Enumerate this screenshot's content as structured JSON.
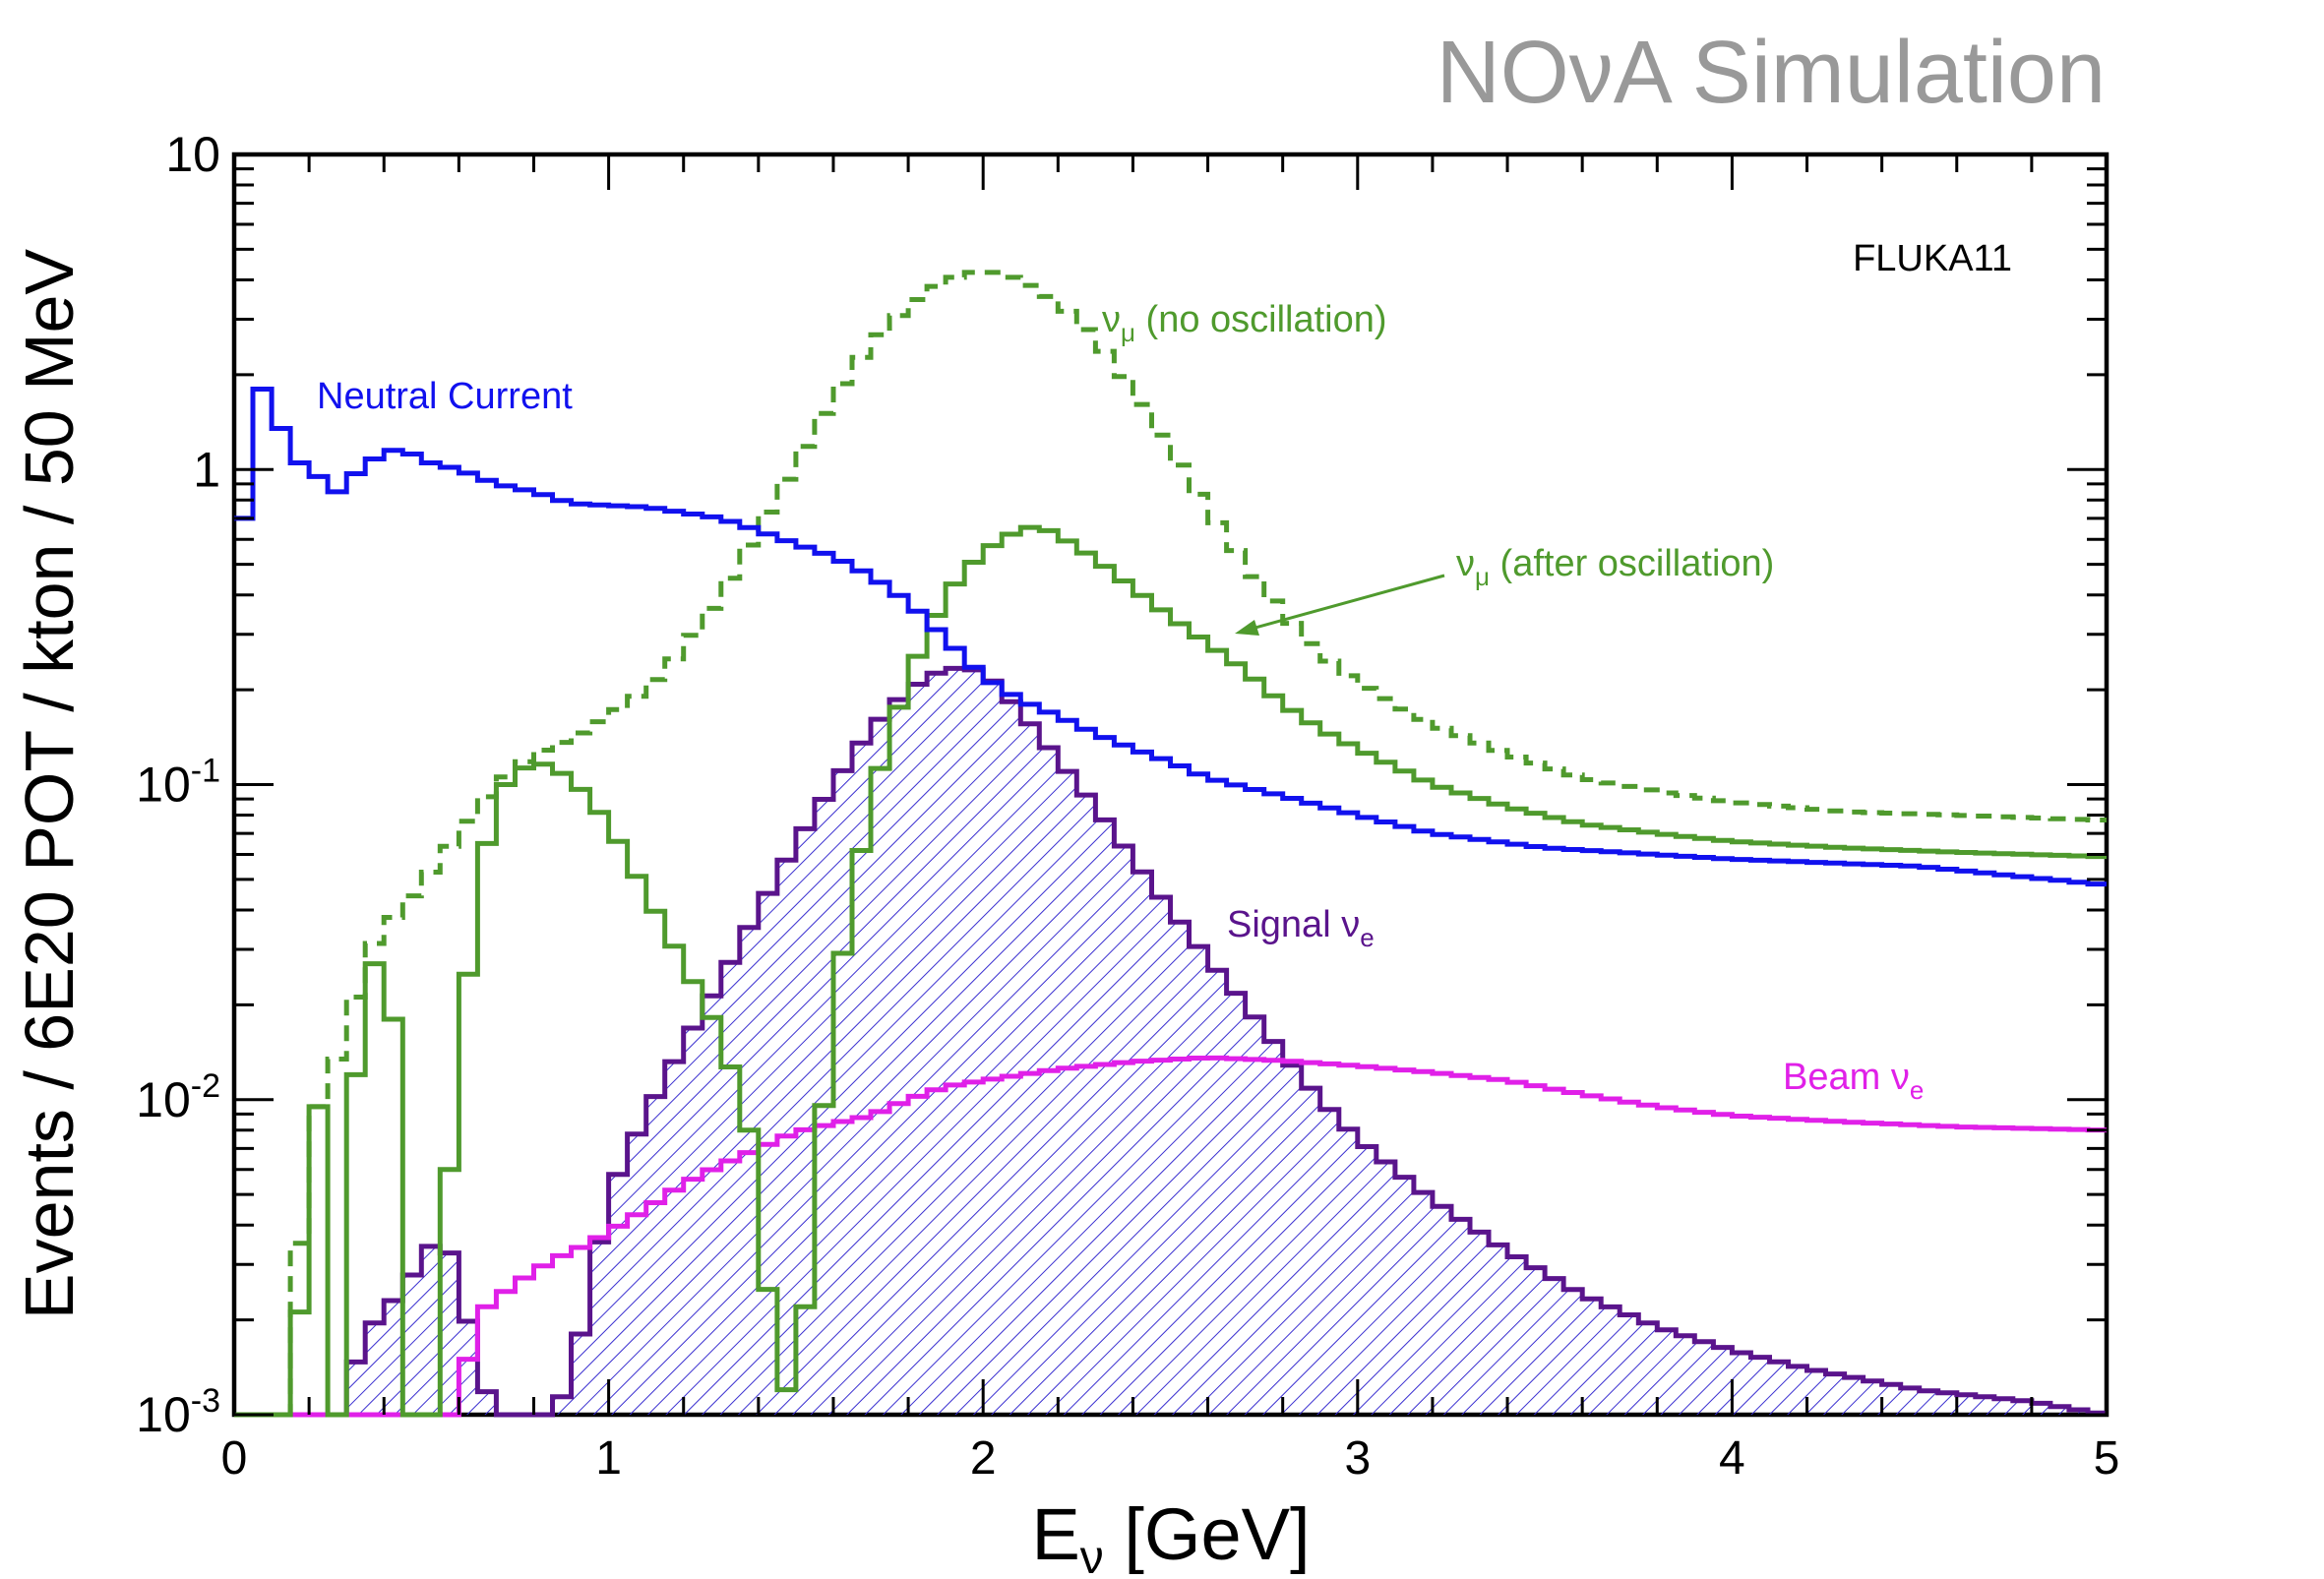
{
  "chart_data": {
    "type": "line",
    "banner": "NOνA Simulation",
    "tag": "FLUKA11",
    "xlabel": {
      "main": "E",
      "sub": "ν",
      "rest": " [GeV]"
    },
    "ylabel": "Events / 6E20 POT / kton / 50 MeV",
    "xlim": [
      0,
      5
    ],
    "ylim": [
      0.001,
      10
    ],
    "yscale": "log",
    "grid": false,
    "xticks": [
      0,
      1,
      2,
      3,
      4,
      5
    ],
    "yticks": [
      {
        "value": 10,
        "base": "10",
        "exp": ""
      },
      {
        "value": 1,
        "base": "1",
        "exp": ""
      },
      {
        "value": 0.1,
        "base": "10",
        "exp": "-1"
      },
      {
        "value": 0.01,
        "base": "10",
        "exp": "-2"
      },
      {
        "value": 0.001,
        "base": "10",
        "exp": "-3"
      }
    ],
    "colors": {
      "nc": "#1111ee",
      "numu": "#4f9a2d",
      "signal": "#5a148c",
      "beam": "#e020e8",
      "banner": "#999999"
    },
    "series": [
      {
        "key": "nc",
        "style": "solid",
        "bin_edges": [
          0,
          0.05
        ],
        "anchors": [
          [
            0.025,
            0.7
          ],
          [
            0.075,
            1.8
          ],
          [
            0.125,
            1.35
          ],
          [
            0.175,
            1.05
          ],
          [
            0.225,
            0.95
          ],
          [
            0.275,
            0.85
          ],
          [
            0.325,
            0.97
          ],
          [
            0.375,
            1.08
          ],
          [
            0.425,
            1.15
          ],
          [
            0.475,
            1.12
          ],
          [
            0.525,
            1.05
          ],
          [
            0.6,
            1.0
          ],
          [
            0.7,
            0.9
          ],
          [
            0.8,
            0.85
          ],
          [
            0.9,
            0.78
          ],
          [
            1.0,
            0.77
          ],
          [
            1.1,
            0.76
          ],
          [
            1.2,
            0.73
          ],
          [
            1.3,
            0.7
          ],
          [
            1.4,
            0.64
          ],
          [
            1.5,
            0.58
          ],
          [
            1.6,
            0.53
          ],
          [
            1.7,
            0.46
          ],
          [
            1.8,
            0.38
          ],
          [
            1.9,
            0.29
          ],
          [
            2.0,
            0.22
          ],
          [
            2.1,
            0.185
          ],
          [
            2.2,
            0.165
          ],
          [
            2.3,
            0.145
          ],
          [
            2.4,
            0.13
          ],
          [
            2.5,
            0.118
          ],
          [
            2.6,
            0.105
          ],
          [
            2.7,
            0.098
          ],
          [
            2.8,
            0.092
          ],
          [
            3.0,
            0.08
          ],
          [
            3.2,
            0.07
          ],
          [
            3.5,
            0.063
          ],
          [
            4.0,
            0.058
          ],
          [
            4.5,
            0.055
          ],
          [
            5.0,
            0.048
          ]
        ],
        "label": "Neutral Current"
      },
      {
        "key": "numu_noosc",
        "style": "dashed",
        "anchors": [
          [
            0.125,
            0.001
          ],
          [
            0.175,
            0.0035
          ],
          [
            0.225,
            0.0095
          ],
          [
            0.3,
            0.016
          ],
          [
            0.35,
            0.028
          ],
          [
            0.4,
            0.035
          ],
          [
            0.5,
            0.048
          ],
          [
            0.6,
            0.07
          ],
          [
            0.7,
            0.1
          ],
          [
            0.8,
            0.125
          ],
          [
            0.9,
            0.14
          ],
          [
            1.0,
            0.165
          ],
          [
            1.1,
            0.2
          ],
          [
            1.2,
            0.27
          ],
          [
            1.3,
            0.4
          ],
          [
            1.4,
            0.65
          ],
          [
            1.5,
            1.05
          ],
          [
            1.6,
            1.7
          ],
          [
            1.7,
            2.5
          ],
          [
            1.8,
            3.3
          ],
          [
            1.9,
            4.0
          ],
          [
            2.0,
            4.3
          ],
          [
            2.1,
            4.0
          ],
          [
            2.2,
            3.4
          ],
          [
            2.3,
            2.6
          ],
          [
            2.4,
            1.8
          ],
          [
            2.5,
            1.15
          ],
          [
            2.6,
            0.75
          ],
          [
            2.7,
            0.5
          ],
          [
            2.8,
            0.35
          ],
          [
            2.9,
            0.26
          ],
          [
            3.0,
            0.21
          ],
          [
            3.2,
            0.155
          ],
          [
            3.4,
            0.125
          ],
          [
            3.6,
            0.105
          ],
          [
            3.8,
            0.095
          ],
          [
            4.0,
            0.088
          ],
          [
            4.3,
            0.082
          ],
          [
            4.6,
            0.08
          ],
          [
            5.0,
            0.077
          ]
        ],
        "label": "ν",
        "label_sub": "μ",
        "label_rest": " (no oscillation)"
      },
      {
        "key": "numu_osc",
        "style": "solid",
        "bin_edges": [
          0,
          0.05
        ],
        "anchors": [
          [
            0.15,
            0.001
          ],
          [
            0.225,
            0.0095
          ],
          [
            0.275,
            0.001
          ],
          [
            0.3,
            0.001
          ],
          [
            0.325,
            0.012
          ],
          [
            0.375,
            0.027
          ],
          [
            0.425,
            0.018
          ],
          [
            0.475,
            0.001
          ],
          [
            0.5,
            0.001
          ],
          [
            0.525,
            0.001
          ],
          [
            0.575,
            0.006
          ],
          [
            0.625,
            0.025
          ],
          [
            0.675,
            0.065
          ],
          [
            0.725,
            0.1
          ],
          [
            0.8,
            0.12
          ],
          [
            0.9,
            0.105
          ],
          [
            1.0,
            0.075
          ],
          [
            1.1,
            0.045
          ],
          [
            1.2,
            0.027
          ],
          [
            1.3,
            0.016
          ],
          [
            1.375,
            0.008
          ],
          [
            1.425,
            0.0025
          ],
          [
            1.475,
            0.0012
          ],
          [
            1.525,
            0.0022
          ],
          [
            1.6,
            0.02
          ],
          [
            1.7,
            0.09
          ],
          [
            1.8,
            0.22
          ],
          [
            1.9,
            0.4
          ],
          [
            2.0,
            0.55
          ],
          [
            2.1,
            0.65
          ],
          [
            2.15,
            0.66
          ],
          [
            2.2,
            0.62
          ],
          [
            2.3,
            0.52
          ],
          [
            2.4,
            0.42
          ],
          [
            2.5,
            0.34
          ],
          [
            2.6,
            0.28
          ],
          [
            2.7,
            0.23
          ],
          [
            2.8,
            0.18
          ],
          [
            2.9,
            0.15
          ],
          [
            3.0,
            0.13
          ],
          [
            3.2,
            0.1
          ],
          [
            3.4,
            0.085
          ],
          [
            3.6,
            0.075
          ],
          [
            3.8,
            0.07
          ],
          [
            4.0,
            0.066
          ],
          [
            4.3,
            0.063
          ],
          [
            4.6,
            0.061
          ],
          [
            5.0,
            0.059
          ]
        ],
        "label": "ν",
        "label_sub": "μ",
        "label_rest": " (after oscillation)"
      },
      {
        "key": "signal",
        "style": "solid-hatched",
        "bin_edges": [
          0,
          0.05
        ],
        "anchors": [
          [
            0.275,
            0.001
          ],
          [
            0.3,
            0.0012
          ],
          [
            0.35,
            0.0018
          ],
          [
            0.45,
            0.0025
          ],
          [
            0.55,
            0.0038
          ],
          [
            0.6,
            0.0028
          ],
          [
            0.65,
            0.0014
          ],
          [
            0.7,
            0.001
          ],
          [
            0.85,
            0.001
          ],
          [
            0.9,
            0.0013
          ],
          [
            0.95,
            0.0025
          ],
          [
            1.0,
            0.005
          ],
          [
            1.1,
            0.009
          ],
          [
            1.2,
            0.015
          ],
          [
            1.3,
            0.024
          ],
          [
            1.4,
            0.04
          ],
          [
            1.5,
            0.065
          ],
          [
            1.6,
            0.1
          ],
          [
            1.7,
            0.15
          ],
          [
            1.8,
            0.2
          ],
          [
            1.9,
            0.235
          ],
          [
            2.0,
            0.23
          ],
          [
            2.1,
            0.17
          ],
          [
            2.2,
            0.12
          ],
          [
            2.3,
            0.085
          ],
          [
            2.4,
            0.058
          ],
          [
            2.5,
            0.04
          ],
          [
            2.6,
            0.028
          ],
          [
            2.7,
            0.02
          ],
          [
            2.8,
            0.014
          ],
          [
            2.9,
            0.01
          ],
          [
            3.0,
            0.0075
          ],
          [
            3.2,
            0.0048
          ],
          [
            3.4,
            0.0033
          ],
          [
            3.6,
            0.0024
          ],
          [
            3.8,
            0.0019
          ],
          [
            4.0,
            0.0016
          ],
          [
            4.2,
            0.0014
          ],
          [
            4.5,
            0.0012
          ],
          [
            4.8,
            0.0011
          ],
          [
            5.0,
            0.001
          ]
        ],
        "label": "Signal ν",
        "label_sub": "e"
      },
      {
        "key": "beam",
        "style": "solid",
        "bin_edges": [
          0,
          0.05
        ],
        "anchors": [
          [
            0.575,
            0.001
          ],
          [
            0.625,
            0.0015
          ],
          [
            0.675,
            0.0022
          ],
          [
            0.75,
            0.0026
          ],
          [
            0.85,
            0.0031
          ],
          [
            0.95,
            0.0035
          ],
          [
            1.0,
            0.0038
          ],
          [
            1.1,
            0.0045
          ],
          [
            1.2,
            0.0054
          ],
          [
            1.3,
            0.0062
          ],
          [
            1.4,
            0.007
          ],
          [
            1.5,
            0.0079
          ],
          [
            1.6,
            0.0084
          ],
          [
            1.7,
            0.0089
          ],
          [
            1.8,
            0.01
          ],
          [
            1.9,
            0.011
          ],
          [
            2.0,
            0.0115
          ],
          [
            2.2,
            0.0125
          ],
          [
            2.4,
            0.0132
          ],
          [
            2.6,
            0.0136
          ],
          [
            2.8,
            0.0133
          ],
          [
            3.0,
            0.0128
          ],
          [
            3.2,
            0.0122
          ],
          [
            3.4,
            0.0115
          ],
          [
            3.6,
            0.0104
          ],
          [
            3.8,
            0.0095
          ],
          [
            4.0,
            0.0089
          ],
          [
            4.3,
            0.0085
          ],
          [
            4.6,
            0.0082
          ],
          [
            5.0,
            0.008
          ]
        ],
        "label": "Beam ν",
        "label_sub": "e"
      }
    ]
  }
}
